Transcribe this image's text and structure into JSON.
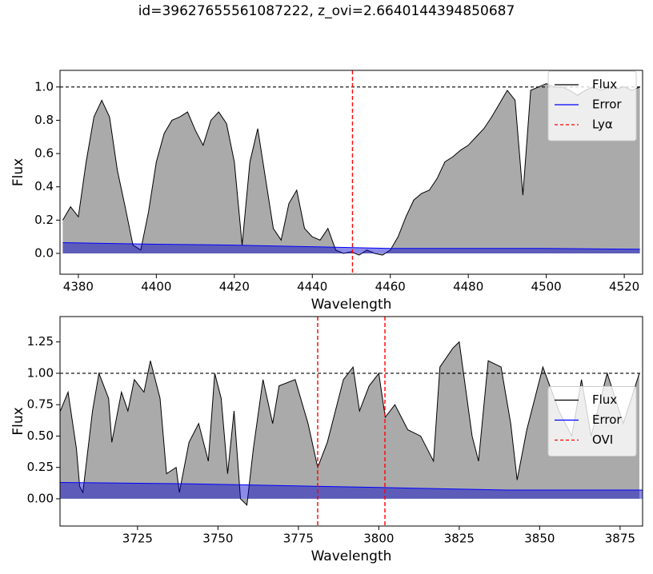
{
  "title": "id=39627655561087222, z_ovi=2.6640144394850687",
  "chart_data": [
    {
      "type": "line",
      "xlabel": "Wavelength",
      "ylabel": "Flux",
      "xlim": [
        4375.3,
        4524.7
      ],
      "ylim": [
        -0.125,
        1.1
      ],
      "xticks": [
        4380,
        4400,
        4420,
        4440,
        4460,
        4480,
        4500,
        4520
      ],
      "yticks": [
        {
          "value": 0,
          "label": "0.0"
        },
        {
          "value": 0.2,
          "label": "0.2"
        },
        {
          "value": 0.4,
          "label": "0.4"
        },
        {
          "value": 0.6,
          "label": "0.6"
        },
        {
          "value": 0.8,
          "label": "0.8"
        },
        {
          "value": 1,
          "label": "1.0"
        }
      ],
      "hline": {
        "value": 1,
        "color": "#000000"
      },
      "legend": "upper right",
      "series": [
        {
          "name": "Flux",
          "color": "#000000",
          "fill": "#aaaaaa",
          "x": [
            4376,
            4378,
            4380,
            4382,
            4384,
            4386,
            4388,
            4390,
            4392,
            4394,
            4396,
            4398,
            4400,
            4402,
            4404,
            4406,
            4408,
            4410,
            4412,
            4414,
            4416,
            4418,
            4420,
            4422,
            4424,
            4426,
            4428,
            4430,
            4432,
            4434,
            4436,
            4438,
            4440,
            4442,
            4444,
            4446,
            4448,
            4450,
            4452,
            4454,
            4456,
            4458,
            4460,
            4462,
            4464,
            4466,
            4468,
            4470,
            4472,
            4474,
            4476,
            4478,
            4480,
            4482,
            4484,
            4486,
            4488,
            4490,
            4492,
            4494,
            4496,
            4498,
            4500,
            4502,
            4504,
            4506,
            4508,
            4510,
            4512,
            4514,
            4516,
            4518,
            4520,
            4522,
            4524
          ],
          "values": [
            0.2,
            0.28,
            0.22,
            0.55,
            0.82,
            0.92,
            0.82,
            0.5,
            0.28,
            0.05,
            0.02,
            0.25,
            0.55,
            0.72,
            0.8,
            0.82,
            0.85,
            0.74,
            0.65,
            0.8,
            0.85,
            0.78,
            0.55,
            0.05,
            0.55,
            0.75,
            0.45,
            0.15,
            0.08,
            0.3,
            0.38,
            0.15,
            0.1,
            0.08,
            0.15,
            0.02,
            0.0,
            0.01,
            -0.01,
            0.02,
            0.0,
            -0.01,
            0.02,
            0.1,
            0.22,
            0.32,
            0.36,
            0.38,
            0.45,
            0.55,
            0.58,
            0.62,
            0.65,
            0.7,
            0.75,
            0.82,
            0.9,
            0.98,
            0.92,
            0.35,
            0.98,
            1.0,
            1.02,
            1.0,
            1.0,
            0.98,
            0.95,
            0.98,
            1.0,
            0.98,
            1.0,
            0.99,
            1.0,
            0.98,
            1.0
          ]
        },
        {
          "name": "Error",
          "color": "#0000ff",
          "fill": "#0000cc",
          "x": [
            4376,
            4400,
            4420,
            4440,
            4460,
            4480,
            4500,
            4524
          ],
          "values": [
            0.065,
            0.055,
            0.05,
            0.04,
            0.03,
            0.03,
            0.03,
            0.025
          ]
        }
      ],
      "vlines": [
        {
          "name": "Lyα",
          "color": "#ff0000",
          "x": [
            4450.3
          ]
        }
      ]
    },
    {
      "type": "line",
      "xlabel": "Wavelength",
      "ylabel": "Flux",
      "xlim": [
        3700.9,
        3882
      ],
      "ylim": [
        -0.217,
        1.452
      ],
      "xticks": [
        3725,
        3750,
        3775,
        3800,
        3825,
        3850,
        3875
      ],
      "yticks": [
        {
          "value": 0,
          "label": "0.00"
        },
        {
          "value": 0.25,
          "label": "0.25"
        },
        {
          "value": 0.5,
          "label": "0.50"
        },
        {
          "value": 0.75,
          "label": "0.75"
        },
        {
          "value": 1,
          "label": "1.00"
        },
        {
          "value": 1.25,
          "label": "1.25"
        }
      ],
      "hline": {
        "value": 1,
        "color": "#000000"
      },
      "legend": "center right",
      "series": [
        {
          "name": "Flux",
          "color": "#000000",
          "fill": "#aaaaaa",
          "x": [
            3701,
            3703.4,
            3706,
            3707,
            3708,
            3711,
            3713,
            3716,
            3717,
            3720,
            3722,
            3724,
            3727,
            3729,
            3732,
            3734,
            3737,
            3738,
            3741,
            3744,
            3747,
            3749,
            3751,
            3753,
            3755,
            3757,
            3759,
            3761,
            3764,
            3767,
            3769,
            3774,
            3778,
            3781,
            3784,
            3789,
            3792,
            3794,
            3797,
            3800,
            3802,
            3805,
            3809,
            3813,
            3817,
            3819,
            3823,
            3825,
            3829,
            3831,
            3834,
            3838,
            3841,
            3843,
            3846,
            3851,
            3856,
            3860,
            3863,
            3866,
            3871,
            3876,
            3881
          ],
          "values": [
            0.7,
            0.85,
            0.4,
            0.1,
            0.05,
            0.7,
            1.0,
            0.8,
            0.45,
            0.85,
            0.7,
            0.95,
            0.85,
            1.1,
            0.8,
            0.2,
            0.25,
            0.05,
            0.45,
            0.6,
            0.3,
            1.0,
            0.8,
            0.2,
            0.7,
            0.0,
            -0.05,
            0.4,
            0.95,
            0.6,
            0.9,
            0.95,
            0.6,
            0.25,
            0.45,
            0.95,
            1.05,
            0.7,
            0.9,
            1.0,
            0.65,
            0.75,
            0.55,
            0.5,
            0.3,
            1.05,
            1.2,
            1.25,
            0.5,
            0.3,
            1.1,
            1.05,
            0.6,
            0.15,
            0.55,
            1.05,
            0.7,
            0.5,
            0.95,
            0.5,
            1.0,
            0.6,
            1.0
          ]
        },
        {
          "name": "Error",
          "color": "#0000ff",
          "fill": "#0000cc",
          "x": [
            3701,
            3740,
            3760,
            3800,
            3840,
            3882
          ],
          "values": [
            0.13,
            0.12,
            0.11,
            0.09,
            0.07,
            0.07
          ]
        }
      ],
      "vlines": [
        {
          "name": "OVI",
          "color": "#ff0000",
          "x": [
            3781.0,
            3801.9
          ]
        }
      ]
    }
  ]
}
